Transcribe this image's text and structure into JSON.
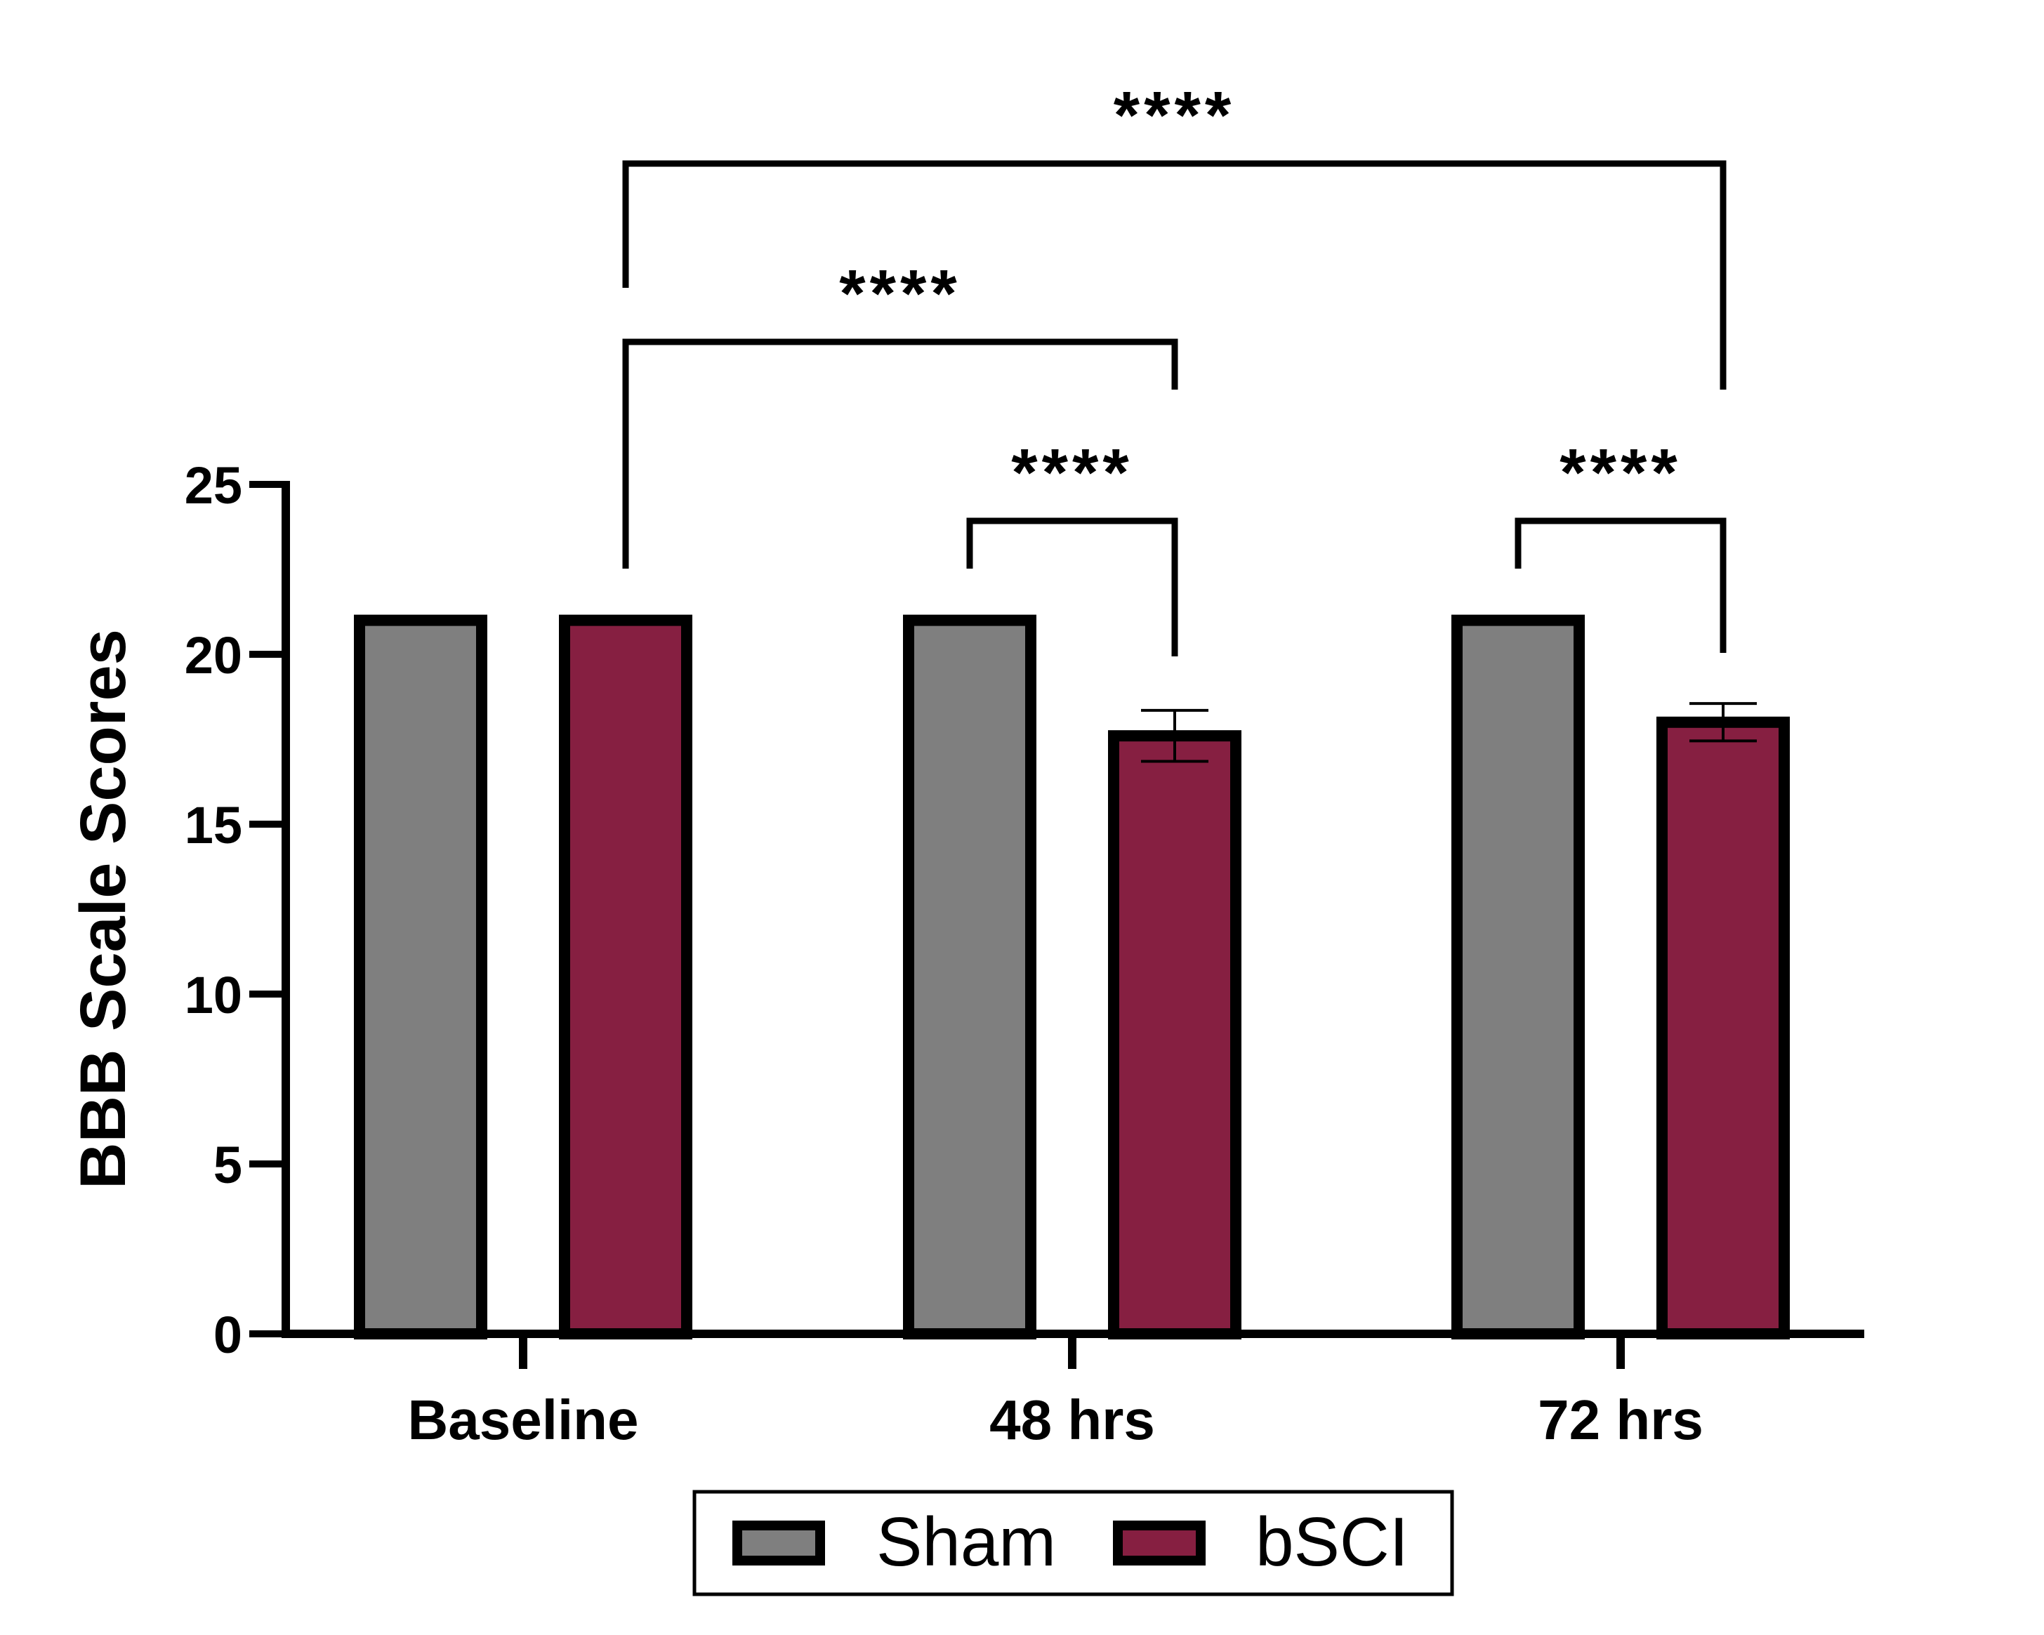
{
  "chart_data": {
    "type": "bar",
    "title": "",
    "xlabel": "",
    "ylabel": "BBB Scale Scores",
    "ylim": [
      0,
      25
    ],
    "yticks": [
      0,
      5,
      10,
      15,
      20,
      25
    ],
    "categories": [
      "Baseline",
      "48 hrs",
      "72 hrs"
    ],
    "series": [
      {
        "name": "Sham",
        "color": "#7f7f7f",
        "values": [
          21,
          21,
          21
        ],
        "errors": [
          0,
          0,
          0
        ]
      },
      {
        "name": "bSCI",
        "color": "#861f41",
        "values": [
          21,
          17.6,
          18.0
        ],
        "errors": [
          0,
          0.75,
          0.55
        ]
      }
    ],
    "legend": {
      "position": "bottom-center",
      "items": [
        "Sham",
        "bSCI"
      ]
    },
    "significance": [
      {
        "label": "****",
        "from": {
          "category": 0,
          "series": 1
        },
        "to": {
          "category": 2,
          "series": 1
        }
      },
      {
        "label": "****",
        "from": {
          "category": 0,
          "series": 1
        },
        "to": {
          "category": 1,
          "series": 1
        }
      },
      {
        "label": "****",
        "from": {
          "category": 1,
          "series": 0
        },
        "to": {
          "category": 1,
          "series": 1
        }
      },
      {
        "label": "****",
        "from": {
          "category": 2,
          "series": 0
        },
        "to": {
          "category": 2,
          "series": 1
        }
      }
    ]
  }
}
